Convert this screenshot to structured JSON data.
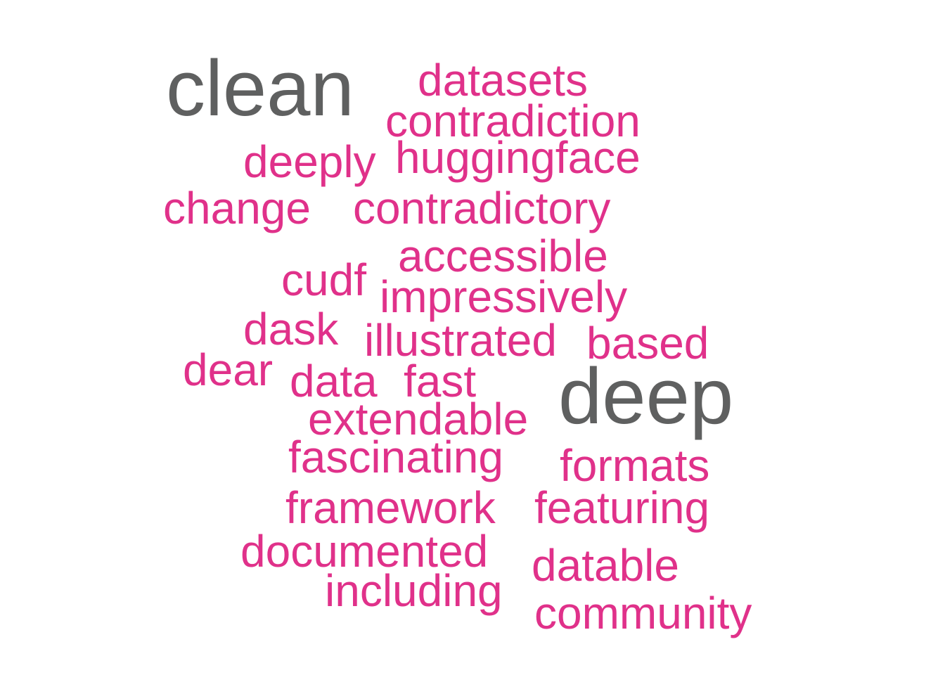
{
  "colors": {
    "background": "#ffffff",
    "primary_words": "#5f6060",
    "secondary_words": "#e0318a"
  },
  "words": [
    {
      "text": "clean"
    },
    {
      "text": "deep"
    },
    {
      "text": "datasets"
    },
    {
      "text": "contradiction"
    },
    {
      "text": "deeply"
    },
    {
      "text": "huggingface"
    },
    {
      "text": "change"
    },
    {
      "text": "contradictory"
    },
    {
      "text": "accessible"
    },
    {
      "text": "cudf"
    },
    {
      "text": "impressively"
    },
    {
      "text": "dask"
    },
    {
      "text": "illustrated"
    },
    {
      "text": "based"
    },
    {
      "text": "dear"
    },
    {
      "text": "data"
    },
    {
      "text": "fast"
    },
    {
      "text": "extendable"
    },
    {
      "text": "fascinating"
    },
    {
      "text": "formats"
    },
    {
      "text": "framework"
    },
    {
      "text": "featuring"
    },
    {
      "text": "documented"
    },
    {
      "text": "datable"
    },
    {
      "text": "including"
    },
    {
      "text": "community"
    }
  ]
}
